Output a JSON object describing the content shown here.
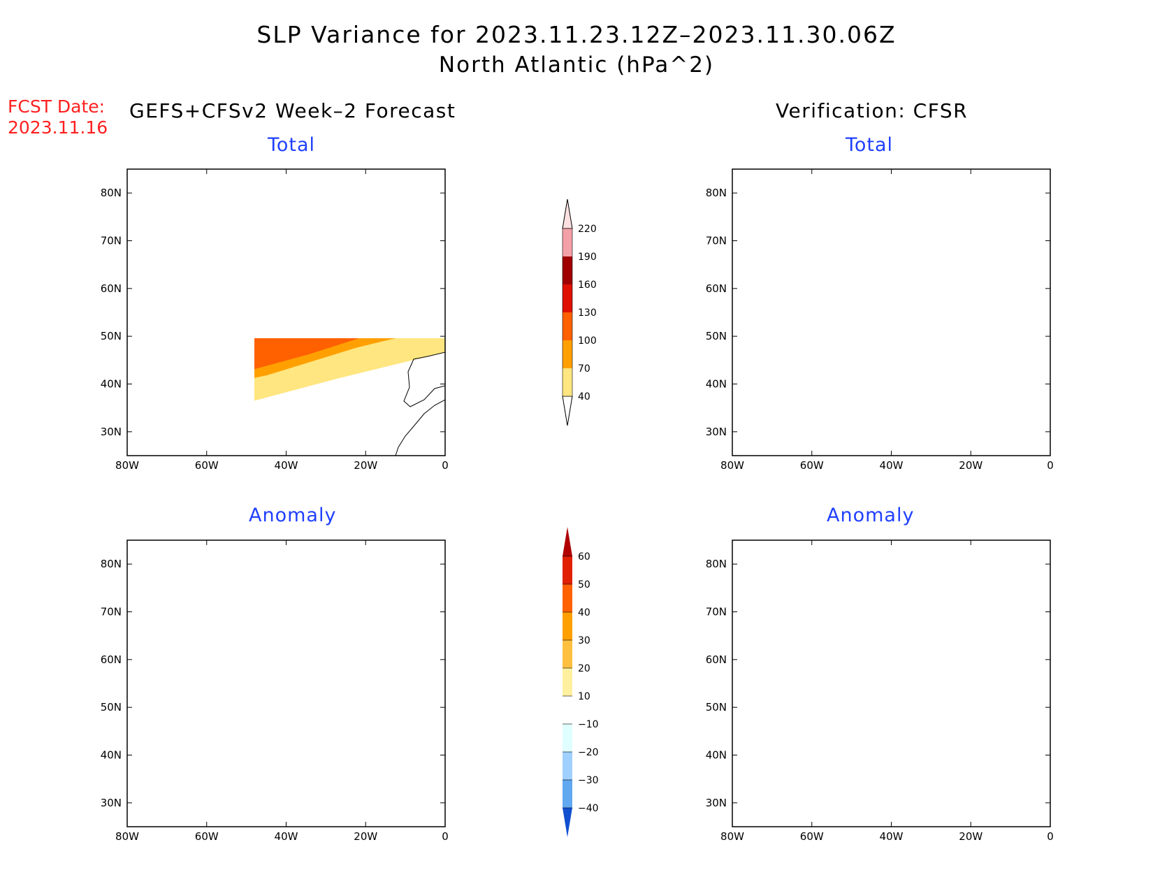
{
  "title": {
    "line1": "SLP Variance for 2023.11.23.12Z–2023.11.30.06Z",
    "line2": "North Atlantic (hPa^2)"
  },
  "fcst": {
    "label": "FCST Date:",
    "date": "2023.11.16"
  },
  "left_header": "GEFS+CFSv2 Week–2 Forecast",
  "right_header": "Verification: CFSR",
  "panel_titles": {
    "total": "Total",
    "anomaly": "Anomaly"
  },
  "axes": {
    "lat_labels": [
      "80N",
      "70N",
      "60N",
      "50N",
      "40N",
      "30N"
    ],
    "lat_values": [
      80,
      70,
      60,
      50,
      40,
      30
    ],
    "lon_labels": [
      "80W",
      "60W",
      "40W",
      "20W",
      "0"
    ],
    "lon_values": [
      -80,
      -60,
      -40,
      -20,
      0
    ],
    "lat_range": [
      25,
      85
    ],
    "lon_range": [
      -80,
      0
    ]
  },
  "colorbars": {
    "total": {
      "levels": [
        "40",
        "70",
        "100",
        "130",
        "160",
        "190",
        "220"
      ],
      "colors": [
        "#ffffff",
        "#ffe680",
        "#ffa000",
        "#ff6000",
        "#e01000",
        "#a00000",
        "#f4a0a8",
        "#fde0e0"
      ]
    },
    "anomaly": {
      "levels": [
        "60",
        "50",
        "40",
        "30",
        "20",
        "10",
        "−10",
        "−20",
        "−30",
        "−40"
      ],
      "colors": [
        "#b00000",
        "#e02000",
        "#ff6000",
        "#ffa000",
        "#ffc040",
        "#fff0a0",
        "#ffffff",
        "#e0ffff",
        "#a0d0ff",
        "#60a8f0",
        "#1e6ee0",
        "#1050d0"
      ]
    }
  }
}
